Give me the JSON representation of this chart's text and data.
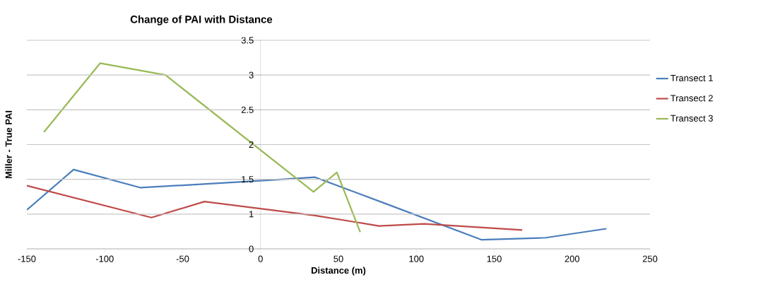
{
  "chart_data": {
    "type": "line",
    "title": "Change of PAI with Distance",
    "xlabel": "Distance (m)",
    "ylabel": "Miller - True PAI",
    "xlim": [
      -150,
      250
    ],
    "xticks": [
      -150,
      -100,
      -50,
      0,
      50,
      100,
      150,
      200,
      250
    ],
    "ylim": [
      0.5,
      3.5
    ],
    "yticks": [
      {
        "value": 0.5,
        "label": "0"
      },
      1,
      1.5,
      2,
      2.5,
      3,
      3.5
    ],
    "grid": "y",
    "legend": "right",
    "line_style": "solid",
    "series": [
      {
        "name": "Transect 1",
        "color": "#4a7ebb",
        "x": [
          -150,
          -120,
          -77,
          0,
          35,
          78,
          142,
          183,
          222
        ],
        "values": [
          1.06,
          1.64,
          1.38,
          1.48,
          1.53,
          1.17,
          0.63,
          0.66,
          0.79
        ]
      },
      {
        "name": "Transect 2",
        "color": "#be4b48",
        "x": [
          -150,
          -70,
          -36,
          35,
          76,
          105,
          168
        ],
        "values": [
          1.41,
          0.95,
          1.18,
          0.98,
          0.83,
          0.86,
          0.77
        ]
      },
      {
        "name": "Transect 3",
        "color": "#98b954",
        "x": [
          -139,
          -103,
          -61,
          34,
          49,
          64
        ],
        "values": [
          2.18,
          3.17,
          3.0,
          1.32,
          1.6,
          0.74
        ]
      }
    ]
  }
}
